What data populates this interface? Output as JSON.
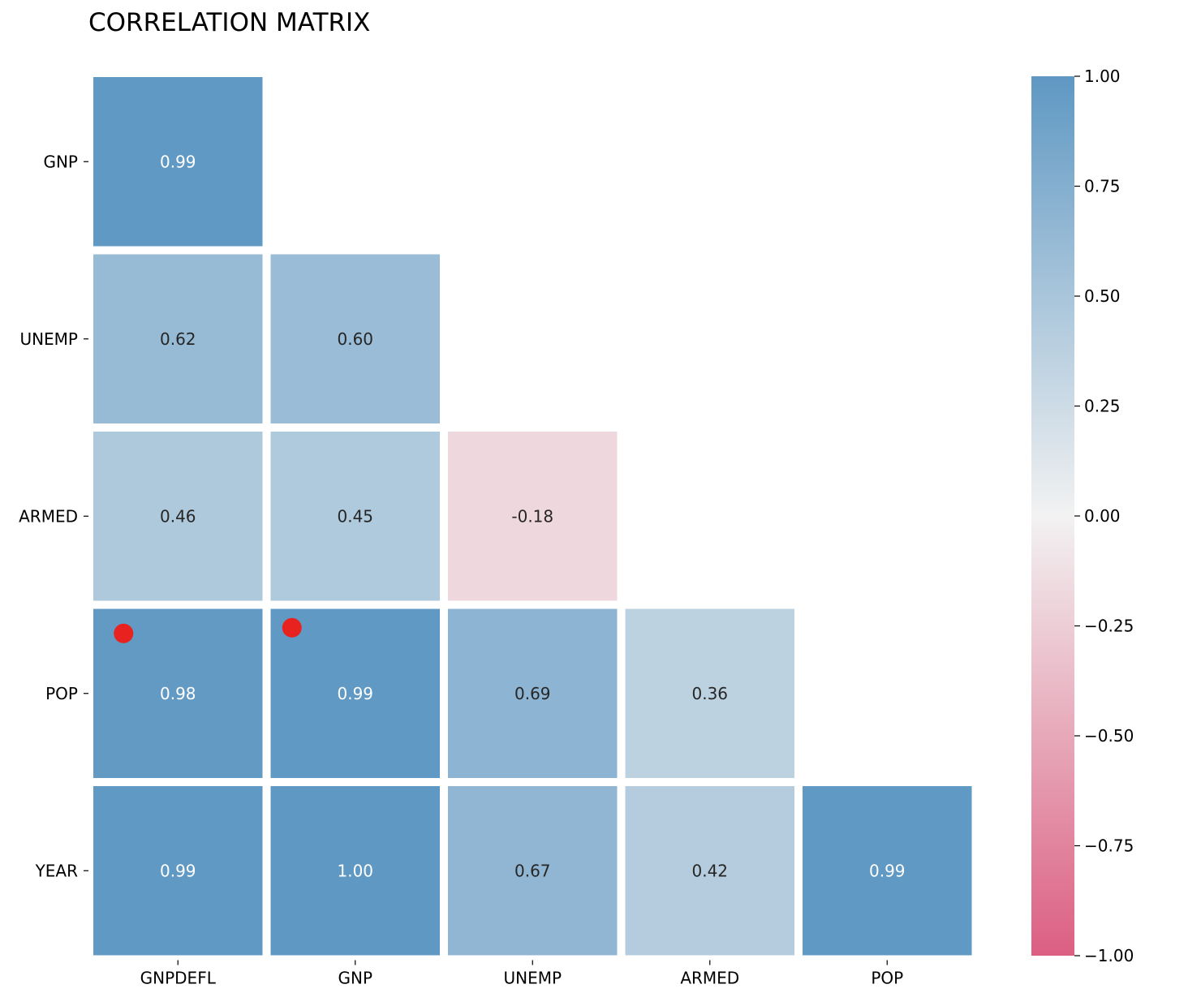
{
  "chart_data": {
    "type": "heatmap",
    "title": "CORRELATION MATRIX",
    "xlabel": "",
    "ylabel": "",
    "x_categories": [
      "GNPDEFL",
      "GNP",
      "UNEMP",
      "ARMED",
      "POP"
    ],
    "y_categories": [
      "GNP",
      "UNEMP",
      "ARMED",
      "POP",
      "YEAR"
    ],
    "values": [
      [
        0.99,
        null,
        null,
        null,
        null
      ],
      [
        0.62,
        0.6,
        null,
        null,
        null
      ],
      [
        0.46,
        0.45,
        -0.18,
        null,
        null
      ],
      [
        0.98,
        0.99,
        0.69,
        0.36,
        null
      ],
      [
        0.99,
        1.0,
        0.67,
        0.42,
        0.99
      ]
    ],
    "value_labels": [
      [
        "0.99",
        "",
        "",
        "",
        ""
      ],
      [
        "0.62",
        "0.60",
        "",
        "",
        ""
      ],
      [
        "0.46",
        "0.45",
        "-0.18",
        "",
        ""
      ],
      [
        "0.98",
        "0.99",
        "0.69",
        "0.36",
        ""
      ],
      [
        "0.99",
        "1.00",
        "0.67",
        "0.42",
        "0.99"
      ]
    ],
    "colorbar": {
      "range": [
        -1.0,
        1.0
      ],
      "ticks": [
        1.0,
        0.75,
        0.5,
        0.25,
        0.0,
        -0.25,
        -0.5,
        -0.75,
        -1.0
      ],
      "tick_labels": [
        "1.00",
        "0.75",
        "0.50",
        "0.25",
        "0.00",
        "−0.25",
        "−0.50",
        "−0.75",
        "−1.00"
      ],
      "colors": {
        "low": "#dc5f82",
        "mid": "#f2f2f2",
        "high": "#5f98c3"
      }
    },
    "markers": [
      {
        "row": "POP",
        "col": "GNPDEFL",
        "color": "#e8221f"
      },
      {
        "row": "POP",
        "col": "GNP",
        "color": "#e8221f"
      }
    ]
  }
}
